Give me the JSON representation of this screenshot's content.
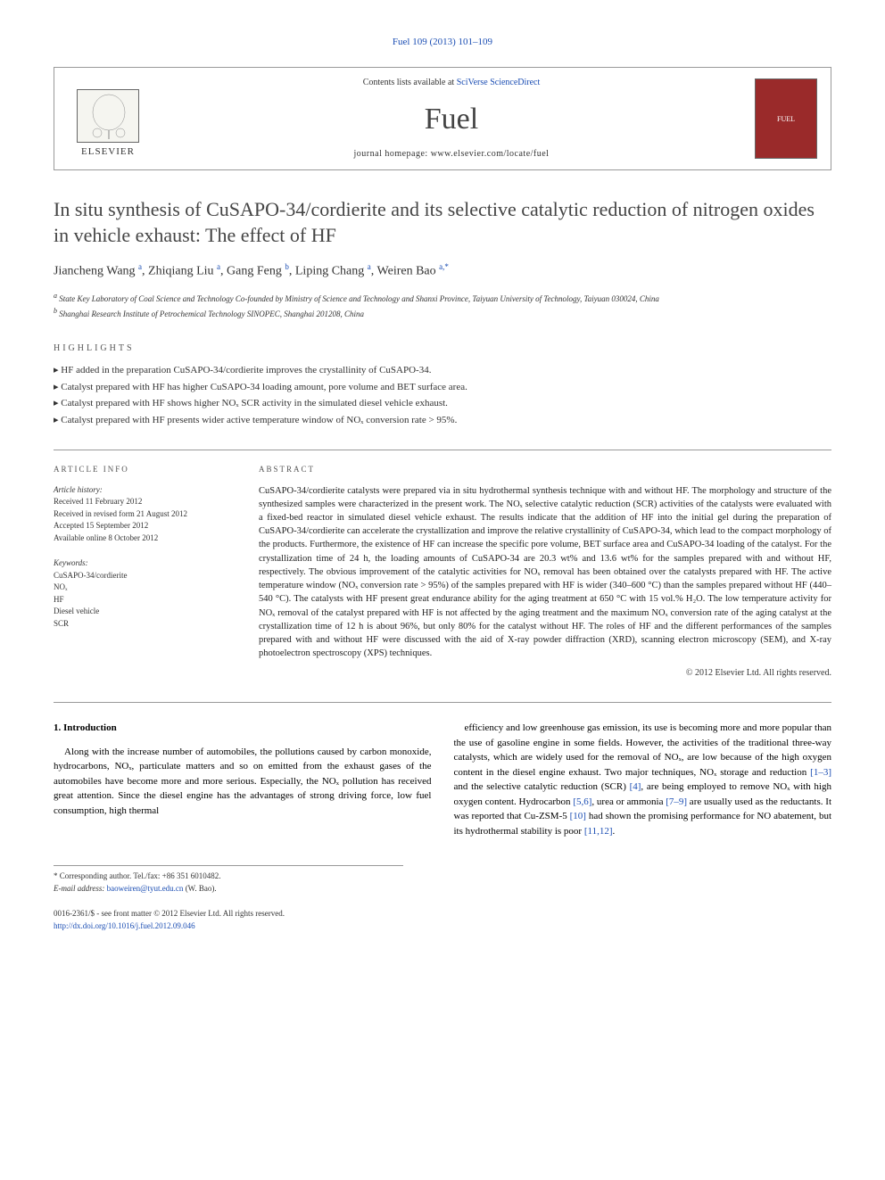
{
  "header": {
    "citation_link": "Fuel 109 (2013) 101–109",
    "contents_text": "Contents lists available at ",
    "contents_link": "SciVerse ScienceDirect",
    "journal_name": "Fuel",
    "homepage_text": "journal homepage: www.elsevier.com/locate/fuel",
    "publisher": "ELSEVIER"
  },
  "article": {
    "title": "In situ synthesis of CuSAPO-34/cordierite and its selective catalytic reduction of nitrogen oxides in vehicle exhaust: The effect of HF",
    "authors_html": "Jiancheng Wang <sup>a</sup>, Zhiqiang Liu <sup>a</sup>, Gang Feng <sup>b</sup>, Liping Chang <sup>a</sup>, Weiren Bao <sup>a,*</sup>",
    "affiliations": [
      "a State Key Laboratory of Coal Science and Technology Co-founded by Ministry of Science and Technology and Shanxi Province, Taiyuan University of Technology, Taiyuan 030024, China",
      "b Shanghai Research Institute of Petrochemical Technology SINOPEC, Shanghai 201208, China"
    ]
  },
  "highlights": {
    "label": "HIGHLIGHTS",
    "items": [
      "HF added in the preparation CuSAPO-34/cordierite improves the crystallinity of CuSAPO-34.",
      "Catalyst prepared with HF has higher CuSAPO-34 loading amount, pore volume and BET surface area.",
      "Catalyst prepared with HF shows higher NOₓ SCR activity in the simulated diesel vehicle exhaust.",
      "Catalyst prepared with HF presents wider active temperature window of NOₓ conversion rate > 95%."
    ]
  },
  "info": {
    "label": "ARTICLE INFO",
    "history_label": "Article history:",
    "history": [
      "Received 11 February 2012",
      "Received in revised form 21 August 2012",
      "Accepted 15 September 2012",
      "Available online 8 October 2012"
    ],
    "keywords_label": "Keywords:",
    "keywords": [
      "CuSAPO-34/cordierite",
      "NOₓ",
      "HF",
      "Diesel vehicle",
      "SCR"
    ]
  },
  "abstract": {
    "label": "ABSTRACT",
    "text": "CuSAPO-34/cordierite catalysts were prepared via in situ hydrothermal synthesis technique with and without HF. The morphology and structure of the synthesized samples were characterized in the present work. The NOₓ selective catalytic reduction (SCR) activities of the catalysts were evaluated with a fixed-bed reactor in simulated diesel vehicle exhaust. The results indicate that the addition of HF into the initial gel during the preparation of CuSAPO-34/cordierite can accelerate the crystallization and improve the relative crystallinity of CuSAPO-34, which lead to the compact morphology of the products. Furthermore, the existence of HF can increase the specific pore volume, BET surface area and CuSAPO-34 loading of the catalyst. For the crystallization time of 24 h, the loading amounts of CuSAPO-34 are 20.3 wt% and 13.6 wt% for the samples prepared with and without HF, respectively. The obvious improvement of the catalytic activities for NOₓ removal has been obtained over the catalysts prepared with HF. The active temperature window (NOₓ conversion rate > 95%) of the samples prepared with HF is wider (340–600 °C) than the samples prepared without HF (440–540 °C). The catalysts with HF present great endurance ability for the aging treatment at 650 °C with 15 vol.% H₂O. The low temperature activity for NOₓ removal of the catalyst prepared with HF is not affected by the aging treatment and the maximum NOₓ conversion rate of the aging catalyst at the crystallization time of 12 h is about 96%, but only 80% for the catalyst without HF. The roles of HF and the different performances of the samples prepared with and without HF were discussed with the aid of X-ray powder diffraction (XRD), scanning electron microscopy (SEM), and X-ray photoelectron spectroscopy (XPS) techniques.",
    "copyright": "© 2012 Elsevier Ltd. All rights reserved."
  },
  "body": {
    "section_heading": "1. Introduction",
    "left_para": "Along with the increase number of automobiles, the pollutions caused by carbon monoxide, hydrocarbons, NOₓ, particulate matters and so on emitted from the exhaust gases of the automobiles have become more and more serious. Especially, the NOₓ pollution has received great attention. Since the diesel engine has the advantages of strong driving force, low fuel consumption, high thermal",
    "right_para_1": "efficiency and low greenhouse gas emission, its use is becoming more and more popular than the use of gasoline engine in some fields. However, the activities of the traditional three-way catalysts, which are widely used for the removal of NOₓ, are low because of the high oxygen content in the diesel engine exhaust. Two major techniques, NOₓ storage and reduction ",
    "right_ref1": "[1–3]",
    "right_para_2": " and the selective catalytic reduction (SCR) ",
    "right_ref2": "[4]",
    "right_para_3": ", are being employed to remove NOₓ with high oxygen content. Hydrocarbon ",
    "right_ref3": "[5,6]",
    "right_para_4": ", urea or ammonia ",
    "right_ref4": "[7–9]",
    "right_para_5": " are usually used as the reductants. It was reported that Cu-ZSM-5 ",
    "right_ref5": "[10]",
    "right_para_6": " had shown the promising performance for NO abatement, but its hydrothermal stability is poor ",
    "right_ref6": "[11,12]",
    "right_para_7": "."
  },
  "footer": {
    "corresponding_label": "* Corresponding author. Tel./fax: +86 351 6010482.",
    "email_label": "E-mail address: ",
    "email": "baoweiren@tyut.edu.cn",
    "email_name": " (W. Bao).",
    "issn": "0016-2361/$ - see front matter © 2012 Elsevier Ltd. All rights reserved.",
    "doi": "http://dx.doi.org/10.1016/j.fuel.2012.09.046"
  },
  "colors": {
    "link": "#1a4db3",
    "text": "#333333",
    "cover_bg": "#9a2a2a",
    "border": "#999999"
  }
}
